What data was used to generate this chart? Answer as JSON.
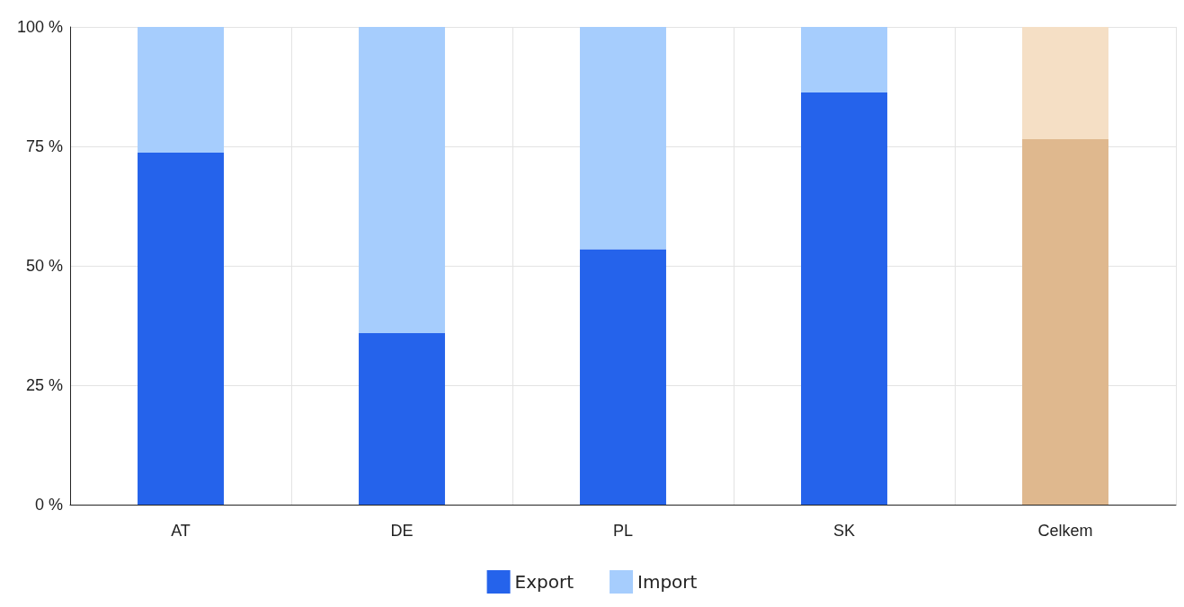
{
  "chart_data": {
    "type": "bar",
    "stacked": true,
    "categories": [
      "AT",
      "DE",
      "PL",
      "SK",
      "Celkem"
    ],
    "series": [
      {
        "name": "Export",
        "color": "#2563eb",
        "colors": [
          "#2563eb",
          "#2563eb",
          "#2563eb",
          "#2563eb",
          "#dfb88e"
        ],
        "values": [
          73.7,
          35.9,
          53.5,
          86.3,
          76.5
        ]
      },
      {
        "name": "Import",
        "color": "#a6cdfd",
        "colors": [
          "#a6cdfd",
          "#a6cdfd",
          "#a6cdfd",
          "#a6cdfd",
          "#f5dfc5"
        ],
        "values": [
          26.3,
          64.1,
          46.5,
          13.7,
          23.5
        ]
      }
    ],
    "ylim": [
      0,
      100
    ],
    "yticks": [
      {
        "value": 0,
        "label": "0 %"
      },
      {
        "value": 25,
        "label": "25 %"
      },
      {
        "value": 50,
        "label": "50 %"
      },
      {
        "value": 75,
        "label": "75 %"
      },
      {
        "value": 100,
        "label": "100 %"
      }
    ],
    "grid": true,
    "legend": "bottom"
  }
}
